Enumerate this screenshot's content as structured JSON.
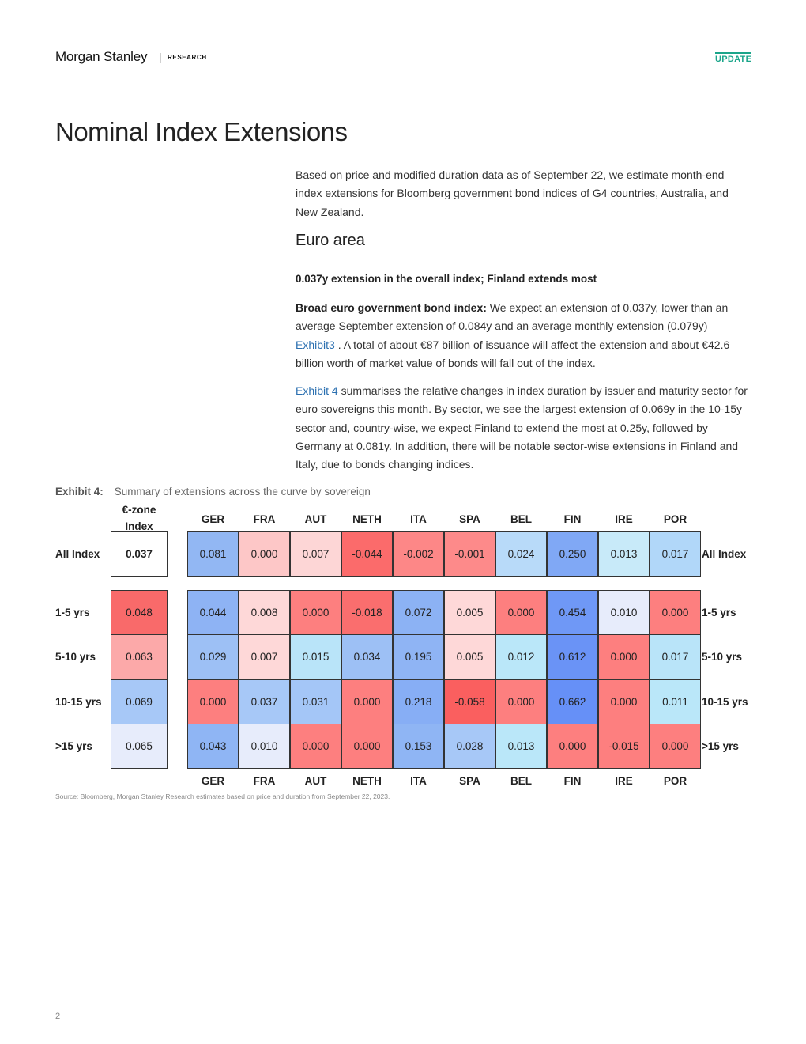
{
  "header": {
    "brand": "Morgan Stanley",
    "sep": "|",
    "section": "RESEARCH",
    "badge": "UPDATE"
  },
  "title": "Nominal Index Extensions",
  "intro": "Based on price and modified duration data as of September 22, we estimate month-end index extensions for Bloomberg government bond indices of G4 countries, Australia, and New Zealand.",
  "section_heading": "Euro area",
  "lead": "0.037y extension in the overall index; Finland extends most",
  "para2": {
    "bold": "Broad euro government bond index:",
    "text1": " We expect an extension of 0.037y, lower than an average September extension of 0.084y and an average monthly extension (0.079y) – ",
    "link": "Exhibit3",
    "text2": " . A total of about €87 billion of issuance will affect the extension and about €42.6 billion worth of market value of bonds will fall out of the index."
  },
  "para3": {
    "link": "Exhibit 4",
    "text": "  summarises the relative changes in index duration by issuer and maturity sector for euro sovereigns this month. By sector, we see the largest extension of 0.069y in the 10-15y sector and, country-wise, we expect Finland to extend the most at 0.25y, followed by Germany at 0.081y. In addition, there will be notable sector-wise extensions in Finland and Italy, due to bonds changing indices."
  },
  "exhibit": {
    "label": "Exhibit 4:",
    "caption": "Summary of extensions across the curve by sovereign",
    "index_header": "€-zone Index",
    "countries": [
      "GER",
      "FRA",
      "AUT",
      "NETH",
      "ITA",
      "SPA",
      "BEL",
      "FIN",
      "IRE",
      "POR"
    ],
    "rows": [
      {
        "label": "All Index",
        "index": "0.037",
        "values": [
          "0.081",
          "0.000",
          "0.007",
          "-0.044",
          "-0.002",
          "-0.001",
          "0.024",
          "0.250",
          "0.013",
          "0.017"
        ]
      },
      {
        "label": "1-5 yrs",
        "index": "0.048",
        "values": [
          "0.044",
          "0.008",
          "0.000",
          "-0.018",
          "0.072",
          "0.005",
          "0.000",
          "0.454",
          "0.010",
          "0.000"
        ]
      },
      {
        "label": "5-10 yrs",
        "index": "0.063",
        "values": [
          "0.029",
          "0.007",
          "0.015",
          "0.034",
          "0.195",
          "0.005",
          "0.012",
          "0.612",
          "0.000",
          "0.017"
        ]
      },
      {
        "label": "10-15 yrs",
        "index": "0.069",
        "values": [
          "0.000",
          "0.037",
          "0.031",
          "0.000",
          "0.218",
          "-0.058",
          "0.000",
          "0.662",
          "0.000",
          "0.011"
        ]
      },
      {
        "label": ">15 yrs",
        "index": "0.065",
        "values": [
          "0.043",
          "0.010",
          "0.000",
          "0.000",
          "0.153",
          "0.028",
          "0.013",
          "0.000",
          "-0.015",
          "0.000"
        ]
      }
    ],
    "colors": {
      "index": [
        "#ffffff",
        "#f96a6a",
        "#fca9a9",
        "#a7c8f7",
        "#e7ecfb"
      ],
      "cells": [
        [
          "#92b7f3",
          "#fdc7c7",
          "#fdd6d6",
          "#fb6b6b",
          "#fd8787",
          "#fd8a8a",
          "#b8daf9",
          "#80a8f5",
          "#c8eaf9",
          "#b1d7f9"
        ],
        [
          "#8eb3f4",
          "#fed8d8",
          "#fd7f7f",
          "#fa6e6e",
          "#8cb2f4",
          "#fed8d8",
          "#fd7f7f",
          "#6f98f6",
          "#e7ecfb",
          "#fd7f7f"
        ],
        [
          "#9dc0f5",
          "#fed8d8",
          "#b9e4f9",
          "#9dc0f5",
          "#8fb4f4",
          "#fed8d8",
          "#bae7f9",
          "#6a93f6",
          "#fd7f7f",
          "#b9e4f9"
        ],
        [
          "#fd7f7f",
          "#a7c8f7",
          "#a4c6f7",
          "#fd7f7f",
          "#87aef5",
          "#fa5f5f",
          "#fd7f7f",
          "#6690f7",
          "#fd7f7f",
          "#bae7f9"
        ],
        [
          "#8fb5f4",
          "#e7ecfb",
          "#fd7f7f",
          "#fd7f7f",
          "#8fb5f4",
          "#a7c8f7",
          "#bae7f9",
          "#fd7f7f",
          "#fd7f7f",
          "#fd7f7f"
        ]
      ]
    },
    "source": "Source: Bloomberg, Morgan Stanley Research estimates based on price and duration from September 22, 2023."
  },
  "page_number": "2"
}
